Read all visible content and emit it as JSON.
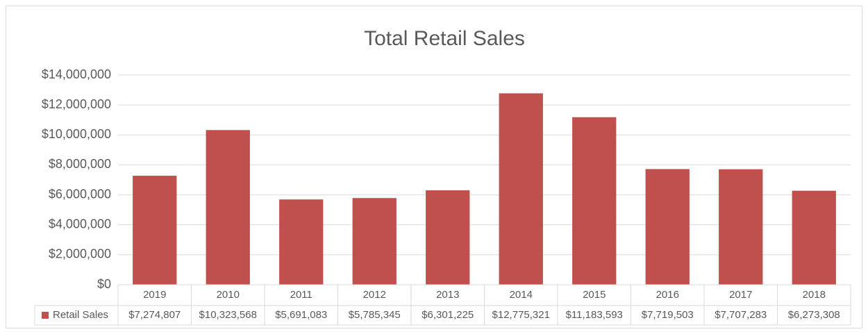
{
  "chart_data": {
    "type": "bar",
    "title": "Total Retail Sales",
    "categories": [
      "2019",
      "2010",
      "2011",
      "2012",
      "2013",
      "2014",
      "2015",
      "2016",
      "2017",
      "2018"
    ],
    "series": [
      {
        "name": "Retail Sales",
        "color": "#c0504d",
        "values": [
          7274807,
          10323568,
          5691083,
          5785345,
          6301225,
          12775321,
          11183593,
          7719503,
          7707283,
          6273308
        ],
        "value_labels": [
          "$7,274,807",
          "$10,323,568",
          "$5,691,083",
          "$5,785,345",
          "$6,301,225",
          "$12,775,321",
          "$11,183,593",
          "$7,719,503",
          "$7,707,283",
          "$6,273,308"
        ]
      }
    ],
    "ylim": [
      0,
      14000000
    ],
    "yticks": [
      {
        "value": 0,
        "label": "$0"
      },
      {
        "value": 2000000,
        "label": "$2,000,000"
      },
      {
        "value": 4000000,
        "label": "$4,000,000"
      },
      {
        "value": 6000000,
        "label": "$6,000,000"
      },
      {
        "value": 8000000,
        "label": "$8,000,000"
      },
      {
        "value": 10000000,
        "label": "$10,000,000"
      },
      {
        "value": 12000000,
        "label": "$12,000,000"
      },
      {
        "value": 14000000,
        "label": "$14,000,000"
      }
    ],
    "grid": true
  }
}
